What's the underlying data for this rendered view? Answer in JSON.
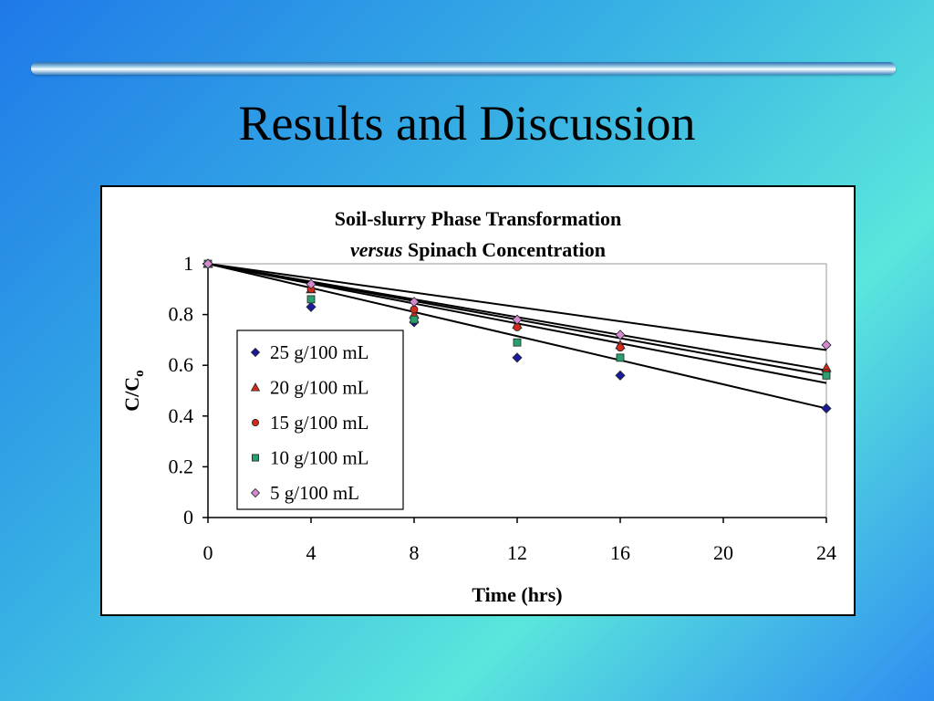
{
  "slide": {
    "title": "Results and Discussion"
  },
  "chart_data": {
    "type": "scatter",
    "title_line1": "Soil-slurry Phase Transformation",
    "title_line2_italic": "versus",
    "title_line2_rest": "Spinach Concentration",
    "xlabel": "Time (hrs)",
    "ylabel": "C/Co",
    "xlim": [
      0,
      24
    ],
    "ylim": [
      0,
      1
    ],
    "x_ticks": [
      0,
      4,
      8,
      12,
      16,
      20,
      24
    ],
    "y_ticks": [
      0,
      0.2,
      0.4,
      0.6,
      0.8,
      1
    ],
    "y_tick_labels": [
      "0",
      "0.2",
      "0.4",
      "0.6",
      "0.8",
      "1"
    ],
    "grid": false,
    "legend_position": "lower-left-inside",
    "x": [
      0,
      4,
      8,
      12,
      16,
      24
    ],
    "series": [
      {
        "name": "25 g/100 mL",
        "marker": "diamond",
        "color": "#1a1a9c",
        "values": [
          1,
          0.83,
          0.77,
          0.63,
          0.56,
          0.43
        ],
        "fit_end": 0.43
      },
      {
        "name": "20 g/100 mL",
        "marker": "triangle",
        "color": "#d42a1a",
        "values": [
          1,
          0.9,
          0.8,
          0.76,
          0.68,
          0.59
        ],
        "fit_end": 0.58
      },
      {
        "name": "15 g/100 mL",
        "marker": "circle",
        "color": "#d42a1a",
        "values": [
          1,
          0.9,
          0.82,
          0.75,
          0.67,
          0.57
        ],
        "fit_end": 0.56
      },
      {
        "name": "10 g/100 mL",
        "marker": "square",
        "color": "#2aa070",
        "values": [
          1,
          0.86,
          0.78,
          0.69,
          0.63,
          0.56
        ],
        "fit_end": 0.53
      },
      {
        "name": "5 g/100 mL",
        "marker": "diamond",
        "color": "#d48ad0",
        "values": [
          1,
          0.92,
          0.85,
          0.78,
          0.72,
          0.68
        ],
        "fit_end": 0.66
      }
    ]
  }
}
